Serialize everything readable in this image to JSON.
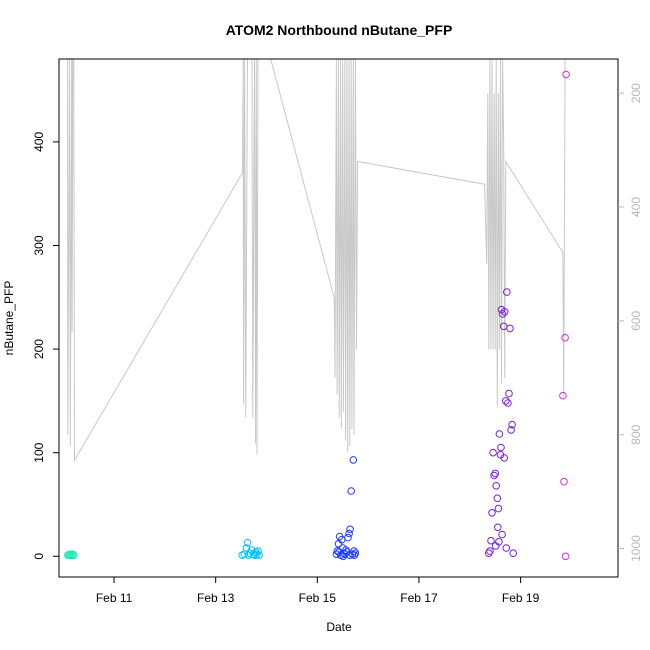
{
  "chart_data": {
    "type": "scatter",
    "title": "ATOM2 Northbound nButane_PFP",
    "xlabel": "Date",
    "ylabel": "nButane_PFP",
    "xlim": [
      "2016-02-09 22:00",
      "2016-02-20 22:00"
    ],
    "ylim": [
      -20,
      480
    ],
    "x_ticks": [
      {
        "date": "2016-02-11",
        "label": "Feb 11"
      },
      {
        "date": "2016-02-13",
        "label": "Feb 13"
      },
      {
        "date": "2016-02-15",
        "label": "Feb 15"
      },
      {
        "date": "2016-02-17",
        "label": "Feb 17"
      },
      {
        "date": "2016-02-19",
        "label": "Feb 19"
      }
    ],
    "y_ticks": [
      0,
      100,
      200,
      300,
      400
    ],
    "y_right": {
      "reversed": true,
      "ylim": [
        1050,
        140
      ],
      "ticks": [
        200,
        400,
        600,
        800,
        1000
      ],
      "color": "#b8b8b8"
    },
    "grid": false,
    "series": [
      {
        "color": "#1de9b6",
        "points": [
          [
            "2016-02-10 02:10",
            1
          ],
          [
            "2016-02-10 02:40",
            1
          ],
          [
            "2016-02-10 03:00",
            2
          ],
          [
            "2016-02-10 03:30",
            1
          ],
          [
            "2016-02-10 04:00",
            1
          ],
          [
            "2016-02-10 04:30",
            2
          ],
          [
            "2016-02-10 05:00",
            1
          ]
        ]
      },
      {
        "color": "#00bfff",
        "points": [
          [
            "2016-02-13 12:30",
            1
          ],
          [
            "2016-02-13 13:30",
            2
          ],
          [
            "2016-02-13 14:30",
            8
          ],
          [
            "2016-02-13 15:00",
            13
          ],
          [
            "2016-02-13 15:30",
            1
          ],
          [
            "2016-02-13 16:00",
            3
          ],
          [
            "2016-02-13 17:00",
            6
          ],
          [
            "2016-02-13 18:00",
            2
          ],
          [
            "2016-02-13 18:30",
            1
          ],
          [
            "2016-02-13 19:00",
            4
          ],
          [
            "2016-02-13 19:30",
            2
          ],
          [
            "2016-02-13 20:00",
            5
          ],
          [
            "2016-02-13 20:30",
            1
          ]
        ]
      },
      {
        "color": "#1f3bff",
        "points": [
          [
            "2016-02-15 09:00",
            2
          ],
          [
            "2016-02-15 09:30",
            5
          ],
          [
            "2016-02-15 10:00",
            12
          ],
          [
            "2016-02-15 10:30",
            19
          ],
          [
            "2016-02-15 11:00",
            1
          ],
          [
            "2016-02-15 11:30",
            16
          ],
          [
            "2016-02-15 12:00",
            8
          ],
          [
            "2016-02-15 12:30",
            3
          ],
          [
            "2016-02-15 13:00",
            2
          ],
          [
            "2016-02-15 13:30",
            6
          ],
          [
            "2016-02-15 14:00",
            4
          ],
          [
            "2016-02-15 14:30",
            18
          ],
          [
            "2016-02-15 15:00",
            22
          ],
          [
            "2016-02-15 15:30",
            26
          ],
          [
            "2016-02-15 16:00",
            63
          ],
          [
            "2016-02-15 16:30",
            2
          ],
          [
            "2016-02-15 17:00",
            93
          ],
          [
            "2016-02-15 17:30",
            1
          ],
          [
            "2016-02-15 18:00",
            3
          ],
          [
            "2016-02-15 10:15",
            4
          ],
          [
            "2016-02-15 12:15",
            0
          ],
          [
            "2016-02-15 15:15",
            1
          ],
          [
            "2016-02-15 17:15",
            5
          ]
        ]
      },
      {
        "color": "#7b1fe0",
        "points": [
          [
            "2016-02-18 09:00",
            3
          ],
          [
            "2016-02-18 09:30",
            5
          ],
          [
            "2016-02-18 10:00",
            15
          ],
          [
            "2016-02-18 10:30",
            42
          ],
          [
            "2016-02-18 11:00",
            100
          ],
          [
            "2016-02-18 11:30",
            78
          ],
          [
            "2016-02-18 12:00",
            80
          ],
          [
            "2016-02-18 12:30",
            68
          ],
          [
            "2016-02-18 13:00",
            56
          ],
          [
            "2016-02-18 13:15",
            28
          ],
          [
            "2016-02-18 13:30",
            46
          ],
          [
            "2016-02-18 14:00",
            118
          ],
          [
            "2016-02-18 14:30",
            98
          ],
          [
            "2016-02-18 14:45",
            105
          ],
          [
            "2016-02-18 15:00",
            238
          ],
          [
            "2016-02-18 15:30",
            234
          ],
          [
            "2016-02-18 16:00",
            222
          ],
          [
            "2016-02-18 16:30",
            236
          ],
          [
            "2016-02-18 17:00",
            150
          ],
          [
            "2016-02-18 17:30",
            255
          ],
          [
            "2016-02-18 18:00",
            148
          ],
          [
            "2016-02-18 18:30",
            157
          ],
          [
            "2016-02-18 19:00",
            220
          ],
          [
            "2016-02-18 19:30",
            122
          ],
          [
            "2016-02-18 20:00",
            127
          ],
          [
            "2016-02-18 20:30",
            3
          ],
          [
            "2016-02-18 12:15",
            10
          ],
          [
            "2016-02-18 13:45",
            14
          ],
          [
            "2016-02-18 15:15",
            21
          ],
          [
            "2016-02-18 16:15",
            95
          ],
          [
            "2016-02-18 17:15",
            8
          ]
        ]
      },
      {
        "color": "#d62ddc",
        "points": [
          [
            "2016-02-19 20:00",
            155
          ],
          [
            "2016-02-19 20:30",
            72
          ],
          [
            "2016-02-19 21:00",
            211
          ],
          [
            "2016-02-19 21:15",
            0
          ],
          [
            "2016-02-19 21:30",
            465
          ]
        ]
      }
    ],
    "profile_line": {
      "color": "#c8c8c8",
      "axis": "right",
      "points": [
        [
          "2016-02-10 02:00",
          140
        ],
        [
          "2016-02-10 02:10",
          800
        ],
        [
          "2016-02-10 03:00",
          140
        ],
        [
          "2016-02-10 03:20",
          820
        ],
        [
          "2016-02-10 04:00",
          140
        ],
        [
          "2016-02-10 04:10",
          620
        ],
        [
          "2016-02-10 04:30",
          140
        ],
        [
          "2016-02-10 05:00",
          140
        ],
        [
          "2016-02-10 05:20",
          845
        ],
        [
          "2016-02-13 12:40",
          340
        ],
        [
          "2016-02-13 13:00",
          140
        ],
        [
          "2016-02-13 13:10",
          745
        ],
        [
          "2016-02-13 13:40",
          140
        ],
        [
          "2016-02-13 14:10",
          770
        ],
        [
          "2016-02-13 15:00",
          140
        ],
        [
          "2016-02-13 16:00",
          140
        ],
        [
          "2016-02-13 17:10",
          140
        ],
        [
          "2016-02-13 17:30",
          770
        ],
        [
          "2016-02-13 18:20",
          140
        ],
        [
          "2016-02-13 18:50",
          815
        ],
        [
          "2016-02-13 19:10",
          140
        ],
        [
          "2016-02-13 19:30",
          835
        ],
        [
          "2016-02-13 20:00",
          140
        ],
        [
          "2016-02-14 02:00",
          140
        ],
        [
          "2016-02-15 08:00",
          560
        ],
        [
          "2016-02-15 08:20",
          700
        ],
        [
          "2016-02-15 09:00",
          140
        ],
        [
          "2016-02-15 09:20",
          730
        ],
        [
          "2016-02-15 10:00",
          140
        ],
        [
          "2016-02-15 10:20",
          770
        ],
        [
          "2016-02-15 11:00",
          140
        ],
        [
          "2016-02-15 11:20",
          790
        ],
        [
          "2016-02-15 12:00",
          140
        ],
        [
          "2016-02-15 12:20",
          760
        ],
        [
          "2016-02-15 13:00",
          140
        ],
        [
          "2016-02-15 13:20",
          810
        ],
        [
          "2016-02-15 14:00",
          140
        ],
        [
          "2016-02-15 14:20",
          830
        ],
        [
          "2016-02-15 15:00",
          140
        ],
        [
          "2016-02-15 15:20",
          820
        ],
        [
          "2016-02-15 16:00",
          140
        ],
        [
          "2016-02-15 16:20",
          790
        ],
        [
          "2016-02-15 17:00",
          140
        ],
        [
          "2016-02-15 17:20",
          800
        ],
        [
          "2016-02-15 18:00",
          140
        ],
        [
          "2016-02-15 18:30",
          650
        ],
        [
          "2016-02-15 19:00",
          320
        ],
        [
          "2016-02-18 07:00",
          360
        ],
        [
          "2016-02-18 08:00",
          500
        ],
        [
          "2016-02-18 08:30",
          200
        ],
        [
          "2016-02-18 09:00",
          650
        ],
        [
          "2016-02-18 09:30",
          140
        ],
        [
          "2016-02-18 10:00",
          650
        ],
        [
          "2016-02-18 10:30",
          140
        ],
        [
          "2016-02-18 11:00",
          650
        ],
        [
          "2016-02-18 11:30",
          200
        ],
        [
          "2016-02-18 12:00",
          650
        ],
        [
          "2016-02-18 12:30",
          140
        ],
        [
          "2016-02-18 13:00",
          750
        ],
        [
          "2016-02-18 13:30",
          200
        ],
        [
          "2016-02-18 14:00",
          650
        ],
        [
          "2016-02-18 14:30",
          140
        ],
        [
          "2016-02-18 15:00",
          710
        ],
        [
          "2016-02-18 15:30",
          140
        ],
        [
          "2016-02-18 16:00",
          290
        ],
        [
          "2016-02-18 16:30",
          700
        ],
        [
          "2016-02-18 17:00",
          320
        ],
        [
          "2016-02-19 20:00",
          480
        ],
        [
          "2016-02-19 20:20",
          735
        ],
        [
          "2016-02-19 21:00",
          140
        ]
      ]
    }
  }
}
